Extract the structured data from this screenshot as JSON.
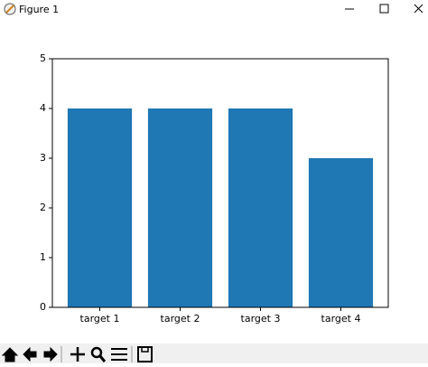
{
  "window": {
    "title": "Figure 1"
  },
  "chart_data": {
    "type": "bar",
    "categories": [
      "target 1",
      "target 2",
      "target 3",
      "target 4"
    ],
    "values": [
      4,
      4,
      4,
      3
    ],
    "color": "#1f77b4",
    "ylim": [
      0,
      5
    ],
    "yticks": [
      0,
      1,
      2,
      3,
      4,
      5
    ],
    "grid": false
  }
}
